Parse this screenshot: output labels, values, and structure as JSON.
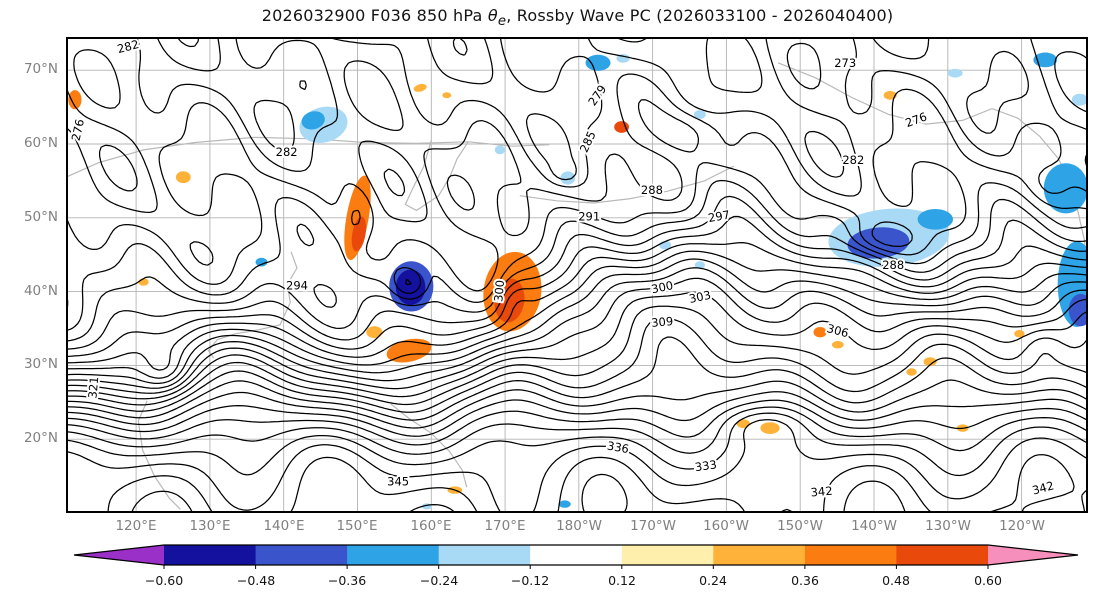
{
  "title": {
    "prefix": "2026032900 F036 850 hPa ",
    "theta": "θ",
    "theta_sub": "e",
    "suffix": ", Rossby Wave PC (2026033100 - 2026040400)"
  },
  "axes": {
    "lat_ticks": [
      {
        "label": "70°N",
        "lat": 70
      },
      {
        "label": "60°N",
        "lat": 60
      },
      {
        "label": "50°N",
        "lat": 50
      },
      {
        "label": "40°N",
        "lat": 40
      },
      {
        "label": "30°N",
        "lat": 30
      },
      {
        "label": "20°N",
        "lat": 20
      }
    ],
    "lon_ticks": [
      {
        "label": "120°E",
        "lon": 120
      },
      {
        "label": "130°E",
        "lon": 130
      },
      {
        "label": "140°E",
        "lon": 140
      },
      {
        "label": "150°E",
        "lon": 150
      },
      {
        "label": "160°E",
        "lon": 160
      },
      {
        "label": "170°E",
        "lon": 170
      },
      {
        "label": "180°W",
        "lon": 180
      },
      {
        "label": "170°W",
        "lon": 190
      },
      {
        "label": "160°W",
        "lon": 200
      },
      {
        "label": "150°W",
        "lon": 210
      },
      {
        "label": "140°W",
        "lon": 220
      },
      {
        "label": "130°W",
        "lon": 230
      },
      {
        "label": "120°W",
        "lon": 240
      }
    ]
  },
  "colorbar": {
    "tick_labels": [
      "−0.60",
      "−0.48",
      "−0.36",
      "−0.24",
      "−0.12",
      "0.12",
      "0.24",
      "0.36",
      "0.48",
      "0.60"
    ],
    "levels": [
      -0.6,
      -0.48,
      -0.36,
      -0.24,
      -0.12,
      0.12,
      0.24,
      0.36,
      0.48,
      0.6
    ],
    "colors": [
      "#9b30c8",
      "#14119e",
      "#3a55cc",
      "#2ea3e6",
      "#a9daf5",
      "#ffffff",
      "#ffefad",
      "#ffb23a",
      "#fb7c10",
      "#e94a0c",
      "#f78fbc"
    ]
  },
  "chart_data": {
    "type": "contour_map",
    "title": "2026032900 F036 850 hPa θe, Rossby Wave PC (2026033100 - 2026040400)",
    "projection_extent": {
      "lon_min": 110.5,
      "lon_max": 249.0,
      "lat_min": 10.0,
      "lat_max": 74.5
    },
    "contours": {
      "variable": "850 hPa equivalent potential temperature θe (K)",
      "interval_k": 3,
      "labeled_levels": [
        273,
        276,
        279,
        282,
        285,
        288,
        291,
        294,
        297,
        300,
        303,
        306,
        309,
        321,
        333,
        336,
        342,
        345
      ]
    },
    "shading": {
      "variable": "Rossby Wave PC (2026033100 - 2026040400)",
      "levels": [
        -0.6,
        -0.48,
        -0.36,
        -0.24,
        -0.12,
        0.12,
        0.24,
        0.36,
        0.48,
        0.6
      ],
      "extend": "both"
    },
    "contour_labels": [
      {
        "value": 282,
        "lon": 140.4,
        "lat": 58.9,
        "rot": 0
      },
      {
        "value": 276,
        "lon": 112.1,
        "lat": 61.9,
        "rot": -78
      },
      {
        "value": 282,
        "lon": 118.9,
        "lat": 73.2,
        "rot": -15
      },
      {
        "value": 279,
        "lon": 182.5,
        "lat": 66.6,
        "rot": -55
      },
      {
        "value": 273,
        "lon": 216.1,
        "lat": 71.0,
        "rot": 0
      },
      {
        "value": 276,
        "lon": 225.7,
        "lat": 63.3,
        "rot": -20
      },
      {
        "value": 282,
        "lon": 217.2,
        "lat": 57.8,
        "rot": 0
      },
      {
        "value": 285,
        "lon": 181.2,
        "lat": 60.3,
        "rot": -65
      },
      {
        "value": 288,
        "lon": 189.9,
        "lat": 53.8,
        "rot": 0
      },
      {
        "value": 288,
        "lon": 222.6,
        "lat": 43.6,
        "rot": 0
      },
      {
        "value": 291,
        "lon": 181.4,
        "lat": 50.2,
        "rot": 0
      },
      {
        "value": 297,
        "lon": 199.0,
        "lat": 50.2,
        "rot": -10
      },
      {
        "value": 294,
        "lon": 141.8,
        "lat": 40.8,
        "rot": 0
      },
      {
        "value": 300,
        "lon": 169.2,
        "lat": 40.1,
        "rot": -85
      },
      {
        "value": 300,
        "lon": 191.3,
        "lat": 40.6,
        "rot": -12
      },
      {
        "value": 303,
        "lon": 196.4,
        "lat": 39.3,
        "rot": -12
      },
      {
        "value": 309,
        "lon": 191.3,
        "lat": 35.9,
        "rot": -5
      },
      {
        "value": 306,
        "lon": 215.1,
        "lat": 34.7,
        "rot": 15
      },
      {
        "value": 333,
        "lon": 197.2,
        "lat": 16.4,
        "rot": -8
      },
      {
        "value": 345,
        "lon": 155.5,
        "lat": 14.3,
        "rot": 0
      },
      {
        "value": 342,
        "lon": 242.9,
        "lat": 13.4,
        "rot": -15
      },
      {
        "value": 342,
        "lon": 212.9,
        "lat": 12.9,
        "rot": -5
      },
      {
        "value": 336,
        "lon": 185.3,
        "lat": 18.9,
        "rot": 10
      },
      {
        "value": 321,
        "lon": 114.2,
        "lat": 27.0,
        "rot": -85
      }
    ],
    "anomaly_regions": [
      {
        "lon": 150.0,
        "lat": 50.0,
        "rx": 1.5,
        "ry": 5.8,
        "rot": 10,
        "value": 0.4
      },
      {
        "lon": 150.2,
        "lat": 47.8,
        "rx": 0.9,
        "ry": 2.4,
        "rot": 10,
        "value": 0.52
      },
      {
        "lon": 171.0,
        "lat": 40.0,
        "rx": 3.9,
        "ry": 5.4,
        "rot": 8,
        "value": 0.4
      },
      {
        "lon": 170.6,
        "lat": 38.8,
        "rx": 2.0,
        "ry": 3.0,
        "rot": 8,
        "value": 0.52
      },
      {
        "lon": 157.0,
        "lat": 32.0,
        "rx": 3.1,
        "ry": 1.5,
        "rot": -12,
        "value": 0.45
      },
      {
        "lon": 152.3,
        "lat": 34.5,
        "rx": 1.1,
        "ry": 0.8,
        "rot": 0,
        "value": 0.32
      },
      {
        "lon": 126.4,
        "lat": 55.5,
        "rx": 1.0,
        "ry": 0.8,
        "rot": 0,
        "value": 0.35
      },
      {
        "lon": 111.7,
        "lat": 66.0,
        "rx": 0.9,
        "ry": 1.3,
        "rot": 0,
        "value": 0.38
      },
      {
        "lon": 185.8,
        "lat": 62.3,
        "rx": 1.0,
        "ry": 0.8,
        "rot": 0,
        "value": 0.52
      },
      {
        "lon": 158.5,
        "lat": 67.6,
        "rx": 0.9,
        "ry": 0.5,
        "rot": -15,
        "value": 0.35
      },
      {
        "lon": 162.1,
        "lat": 66.6,
        "rx": 0.6,
        "ry": 0.4,
        "rot": 0,
        "value": 0.28
      },
      {
        "lon": 222.2,
        "lat": 66.6,
        "rx": 0.9,
        "ry": 0.6,
        "rot": 0,
        "value": 0.3
      },
      {
        "lon": 212.7,
        "lat": 34.5,
        "rx": 0.9,
        "ry": 0.7,
        "rot": 0,
        "value": 0.4
      },
      {
        "lon": 215.1,
        "lat": 32.8,
        "rx": 0.8,
        "ry": 0.5,
        "rot": 0,
        "value": 0.3
      },
      {
        "lon": 227.6,
        "lat": 30.5,
        "rx": 0.9,
        "ry": 0.6,
        "rot": 0,
        "value": 0.35
      },
      {
        "lon": 225.1,
        "lat": 29.1,
        "rx": 0.7,
        "ry": 0.5,
        "rot": 0,
        "value": 0.28
      },
      {
        "lon": 205.9,
        "lat": 21.5,
        "rx": 1.3,
        "ry": 0.8,
        "rot": 0,
        "value": 0.35
      },
      {
        "lon": 202.3,
        "lat": 22.1,
        "rx": 0.9,
        "ry": 0.6,
        "rot": 0,
        "value": 0.28
      },
      {
        "lon": 163.2,
        "lat": 13.1,
        "rx": 1.0,
        "ry": 0.5,
        "rot": 0,
        "value": 0.3
      },
      {
        "lon": 239.7,
        "lat": 34.3,
        "rx": 0.7,
        "ry": 0.5,
        "rot": 0,
        "value": 0.3
      },
      {
        "lon": 121.0,
        "lat": 41.3,
        "rx": 0.7,
        "ry": 0.5,
        "rot": 0,
        "value": 0.3
      },
      {
        "lon": 232.0,
        "lat": 21.5,
        "rx": 0.8,
        "ry": 0.5,
        "rot": 0,
        "value": 0.28
      },
      {
        "lon": 145.4,
        "lat": 62.6,
        "rx": 3.3,
        "ry": 2.4,
        "rot": -15,
        "value": -0.22
      },
      {
        "lon": 144.0,
        "lat": 63.2,
        "rx": 1.6,
        "ry": 1.2,
        "rot": -15,
        "value": -0.32
      },
      {
        "lon": 157.3,
        "lat": 40.7,
        "rx": 3.0,
        "ry": 3.4,
        "rot": 0,
        "value": -0.4
      },
      {
        "lon": 157.2,
        "lat": 40.6,
        "rx": 2.0,
        "ry": 2.4,
        "rot": 0,
        "value": -0.58
      },
      {
        "lon": 182.6,
        "lat": 71.0,
        "rx": 1.7,
        "ry": 1.1,
        "rot": 0,
        "value": -0.3
      },
      {
        "lon": 186.0,
        "lat": 71.6,
        "rx": 0.9,
        "ry": 0.6,
        "rot": 0,
        "value": -0.22
      },
      {
        "lon": 178.5,
        "lat": 55.4,
        "rx": 1.0,
        "ry": 0.9,
        "rot": 0,
        "value": -0.22
      },
      {
        "lon": 169.3,
        "lat": 59.2,
        "rx": 0.7,
        "ry": 0.6,
        "rot": 0,
        "value": -0.2
      },
      {
        "lon": 222.0,
        "lat": 47.3,
        "rx": 8.2,
        "ry": 3.9,
        "rot": -5,
        "value": -0.2
      },
      {
        "lon": 220.6,
        "lat": 46.6,
        "rx": 4.2,
        "ry": 2.1,
        "rot": -5,
        "value": -0.42
      },
      {
        "lon": 228.3,
        "lat": 49.8,
        "rx": 2.4,
        "ry": 1.4,
        "rot": 0,
        "value": -0.28
      },
      {
        "lon": 246.0,
        "lat": 54.0,
        "rx": 3.0,
        "ry": 3.4,
        "rot": 0,
        "value": -0.26
      },
      {
        "lon": 247.5,
        "lat": 41.0,
        "rx": 2.6,
        "ry": 5.8,
        "rot": 0,
        "value": -0.26
      },
      {
        "lon": 248.0,
        "lat": 37.5,
        "rx": 1.6,
        "ry": 2.2,
        "rot": 0,
        "value": -0.38
      },
      {
        "lon": 243.2,
        "lat": 71.4,
        "rx": 1.6,
        "ry": 1.0,
        "rot": 0,
        "value": -0.26
      },
      {
        "lon": 247.9,
        "lat": 66.0,
        "rx": 1.1,
        "ry": 0.8,
        "rot": 0,
        "value": -0.22
      },
      {
        "lon": 196.4,
        "lat": 64.0,
        "rx": 0.8,
        "ry": 0.6,
        "rot": 0,
        "value": -0.22
      },
      {
        "lon": 191.7,
        "lat": 46.3,
        "rx": 0.8,
        "ry": 0.6,
        "rot": 0,
        "value": -0.2
      },
      {
        "lon": 196.4,
        "lat": 43.6,
        "rx": 0.7,
        "ry": 0.5,
        "rot": 0,
        "value": -0.2
      },
      {
        "lon": 159.4,
        "lat": 10.9,
        "rx": 0.7,
        "ry": 0.4,
        "rot": 0,
        "value": -0.22
      },
      {
        "lon": 178.1,
        "lat": 11.2,
        "rx": 0.8,
        "ry": 0.5,
        "rot": 0,
        "value": -0.26
      },
      {
        "lon": 231.0,
        "lat": 69.6,
        "rx": 1.0,
        "ry": 0.6,
        "rot": 0,
        "value": -0.2
      },
      {
        "lon": 137.0,
        "lat": 44.0,
        "rx": 0.8,
        "ry": 0.6,
        "rot": 0,
        "value": -0.25
      }
    ],
    "coastlines": [
      [
        [
          110.5,
          55.5
        ],
        [
          115,
          57.5
        ],
        [
          121,
          59.2
        ],
        [
          128,
          60.2
        ],
        [
          136,
          60.9
        ],
        [
          144,
          60.7
        ],
        [
          151,
          60.2
        ],
        [
          158,
          60.1
        ],
        [
          165,
          60.3
        ],
        [
          171,
          59.7
        ],
        [
          176,
          59.9
        ]
      ],
      [
        [
          160,
          60.5
        ],
        [
          159,
          57
        ],
        [
          157.5,
          54
        ],
        [
          156.5,
          51.8
        ],
        [
          158,
          51
        ],
        [
          161,
          53
        ],
        [
          162.5,
          55.5
        ],
        [
          163.5,
          58
        ],
        [
          165,
          60.3
        ]
      ],
      [
        [
          141,
          45.4
        ],
        [
          141.8,
          43.2
        ],
        [
          140.5,
          41
        ],
        [
          140.9,
          38.5
        ],
        [
          139.5,
          35.5
        ],
        [
          136.5,
          34.8
        ],
        [
          133.5,
          34.3
        ],
        [
          131,
          33.5
        ],
        [
          129.8,
          32
        ],
        [
          130.5,
          31
        ]
      ],
      [
        [
          121.5,
          25.2
        ],
        [
          120.3,
          22.5
        ],
        [
          120.9,
          18.5
        ],
        [
          122.5,
          15
        ],
        [
          124.5,
          12
        ],
        [
          126,
          10.5
        ]
      ],
      [
        [
          154.5,
          24.8
        ],
        [
          157,
          22.8
        ],
        [
          160,
          20.8
        ],
        [
          162.5,
          18.3
        ],
        [
          164.2,
          15.8
        ],
        [
          164.8,
          13.5
        ]
      ],
      [
        [
          207,
          71
        ],
        [
          212,
          69
        ],
        [
          217,
          66.3
        ],
        [
          222,
          64
        ],
        [
          227,
          62.7
        ],
        [
          232,
          63.2
        ],
        [
          236,
          64.8
        ],
        [
          239.5,
          63.5
        ],
        [
          242.5,
          61
        ],
        [
          245,
          58
        ],
        [
          246.5,
          55
        ],
        [
          247.5,
          51.5
        ],
        [
          248.5,
          47
        ],
        [
          249,
          43
        ]
      ],
      [
        [
          172,
          53
        ],
        [
          177,
          52.3
        ],
        [
          182,
          52
        ],
        [
          187,
          52.6
        ],
        [
          192,
          53.6
        ],
        [
          197,
          55
        ],
        [
          201,
          57
        ]
      ]
    ]
  }
}
